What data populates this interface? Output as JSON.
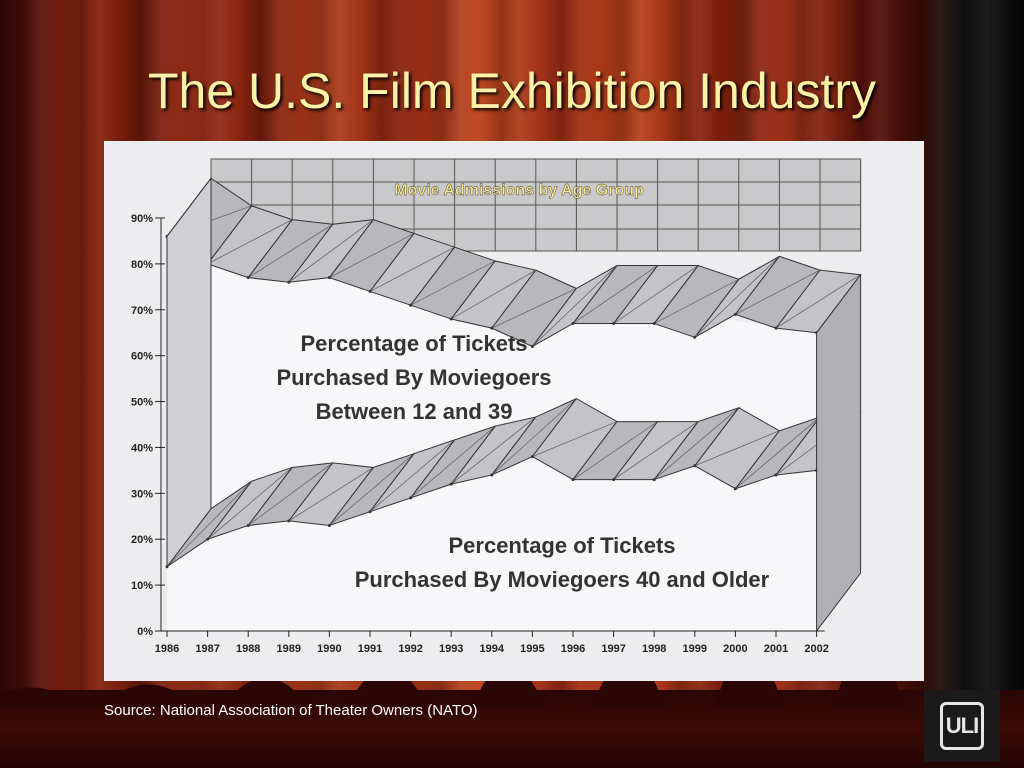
{
  "slide": {
    "title": "The U.S. Film Exhibition Industry",
    "source": "Source: National Association of Theater Owners (NATO)",
    "logo_text": "ULI",
    "title_color": "#fbf2a8"
  },
  "chart_data": {
    "type": "area",
    "title": "Movie Admissions  by Age Group",
    "title_color": "#f5e9a0",
    "categories": [
      "1986",
      "1987",
      "1988",
      "1989",
      "1990",
      "1991",
      "1992",
      "1993",
      "1994",
      "1995",
      "1996",
      "1997",
      "1998",
      "1999",
      "2000",
      "2001",
      "2002"
    ],
    "ylim": [
      0,
      90
    ],
    "yticks": [
      "0%",
      "10%",
      "20%",
      "30%",
      "40%",
      "50%",
      "60%",
      "70%",
      "80%",
      "90%"
    ],
    "grid": true,
    "series": [
      {
        "name": "Percentage of Tickets Purchased By Moviegoers Between 12 and 39",
        "label_lines": [
          "Percentage of Tickets",
          "Purchased By Moviegoers",
          "Between 12 and 39"
        ],
        "values": [
          86,
          80,
          77,
          76,
          77,
          74,
          71,
          68,
          66,
          62,
          67,
          67,
          67,
          64,
          69,
          66,
          65
        ]
      },
      {
        "name": "Percentage of Tickets Purchased By Moviegoers 40 and Older",
        "label_lines": [
          "Percentage of Tickets",
          "Purchased By Moviegoers 40 and Older"
        ],
        "values": [
          14,
          20,
          23,
          24,
          23,
          26,
          29,
          32,
          34,
          38,
          33,
          33,
          33,
          36,
          31,
          34,
          35
        ]
      }
    ]
  }
}
